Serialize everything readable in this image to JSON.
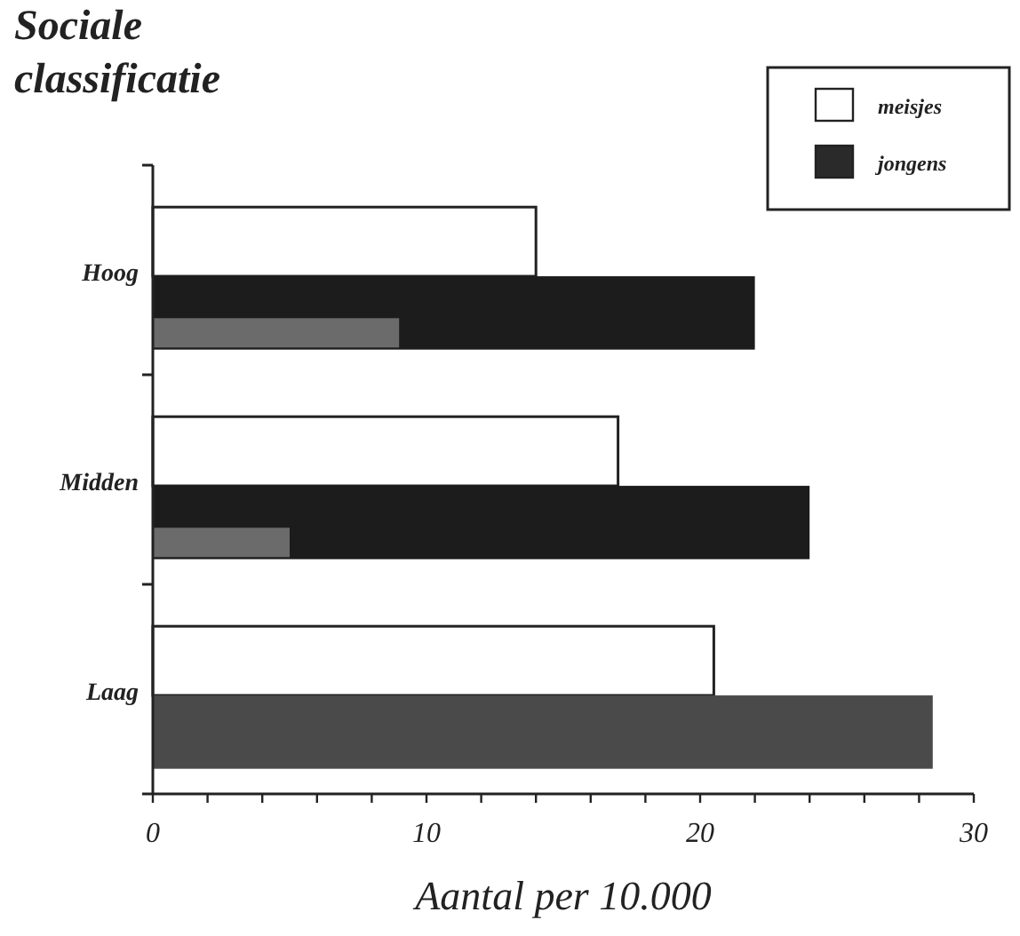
{
  "chart_data": {
    "type": "bar",
    "orientation": "horizontal",
    "title": "Sociale classificatie",
    "xlabel": "Aantal per 10.000",
    "categories": [
      "Hoog",
      "Midden",
      "Laag"
    ],
    "series": [
      {
        "name": "meisjes",
        "color": "#ffffff",
        "values": [
          14,
          17,
          20.5
        ]
      },
      {
        "name": "jongens",
        "color": "#2a2a2a",
        "colors": [
          "#1c1c1c",
          "#1c1c1c",
          "#4a4a4a"
        ],
        "values": [
          22,
          24,
          28.5
        ]
      },
      {
        "color": "#6b6b6b",
        "values": [
          9,
          5,
          null
        ]
      }
    ],
    "xlim": [
      0,
      30
    ],
    "xticks": [
      0,
      {
        "value": 2,
        "label": null
      },
      {
        "value": 4,
        "label": null
      },
      {
        "value": 6,
        "label": null
      },
      {
        "value": 8,
        "label": null
      },
      10,
      {
        "value": 12,
        "label": null
      },
      {
        "value": 14,
        "label": null
      },
      {
        "value": 16,
        "label": null
      },
      {
        "value": 18,
        "label": null
      },
      20,
      {
        "value": 22,
        "label": null
      },
      {
        "value": 24,
        "label": null
      },
      {
        "value": 26,
        "label": null
      },
      {
        "value": 28,
        "label": null
      },
      30
    ],
    "legend": "top right",
    "grid": false
  }
}
